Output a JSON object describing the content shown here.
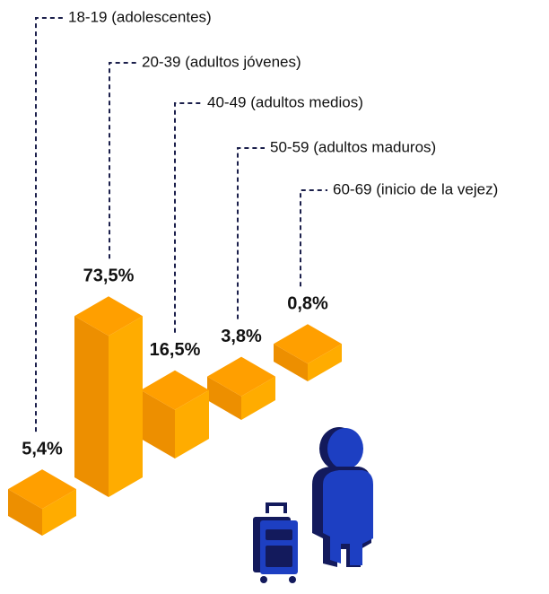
{
  "chart_data": {
    "type": "bar",
    "categories": [
      "18-19 (adolescentes)",
      "20-39 (adultos jóvenes)",
      "40-49 (adultos medios)",
      "50-59 (adultos maduros)",
      "60-69 (inicio de la vejez)"
    ],
    "values": [
      5.4,
      73.5,
      16.5,
      3.8,
      0.8
    ],
    "value_labels": [
      "5,4%",
      "73,5%",
      "16,5%",
      "3,8%",
      "0,8%"
    ],
    "color": "#ff9a00"
  }
}
